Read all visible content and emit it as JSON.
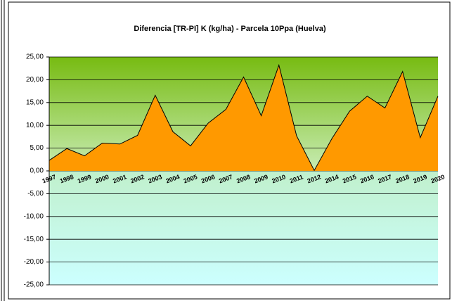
{
  "chart_data": {
    "type": "area",
    "title": "Diferencia [TR-PI] K (kg/ha) - Parcela 10Ppa (Huelva)",
    "categories": [
      "1997",
      "1998",
      "1999",
      "2000",
      "2001",
      "2002",
      "2003",
      "2004",
      "2005",
      "2006",
      "2007",
      "2008",
      "2009",
      "2010",
      "2011",
      "2012",
      "2014",
      "2015",
      "2016",
      "2017",
      "2018",
      "2019",
      "2020"
    ],
    "values": [
      2.3,
      4.9,
      3.3,
      6.1,
      5.9,
      7.8,
      16.6,
      8.6,
      5.5,
      10.5,
      13.5,
      20.6,
      12.1,
      23.2,
      7.7,
      0.1,
      7.1,
      13.1,
      16.4,
      13.8,
      21.8,
      7.3,
      16.4
    ],
    "color": "#ff9900",
    "ylim": [
      -25,
      25
    ],
    "yticks": [
      {
        "value": 25,
        "label": "25,00"
      },
      {
        "value": 20,
        "label": "20,00"
      },
      {
        "value": 15,
        "label": "15,00"
      },
      {
        "value": 10,
        "label": "10,00"
      },
      {
        "value": 5,
        "label": "5,00"
      },
      {
        "value": 0,
        "label": "0,00"
      },
      {
        "value": -5,
        "label": "-5,00"
      },
      {
        "value": -10,
        "label": "-10,00"
      },
      {
        "value": -15,
        "label": "-15,00"
      },
      {
        "value": -20,
        "label": "-20,00"
      },
      {
        "value": -25,
        "label": "-25,00"
      }
    ],
    "grid": true
  }
}
